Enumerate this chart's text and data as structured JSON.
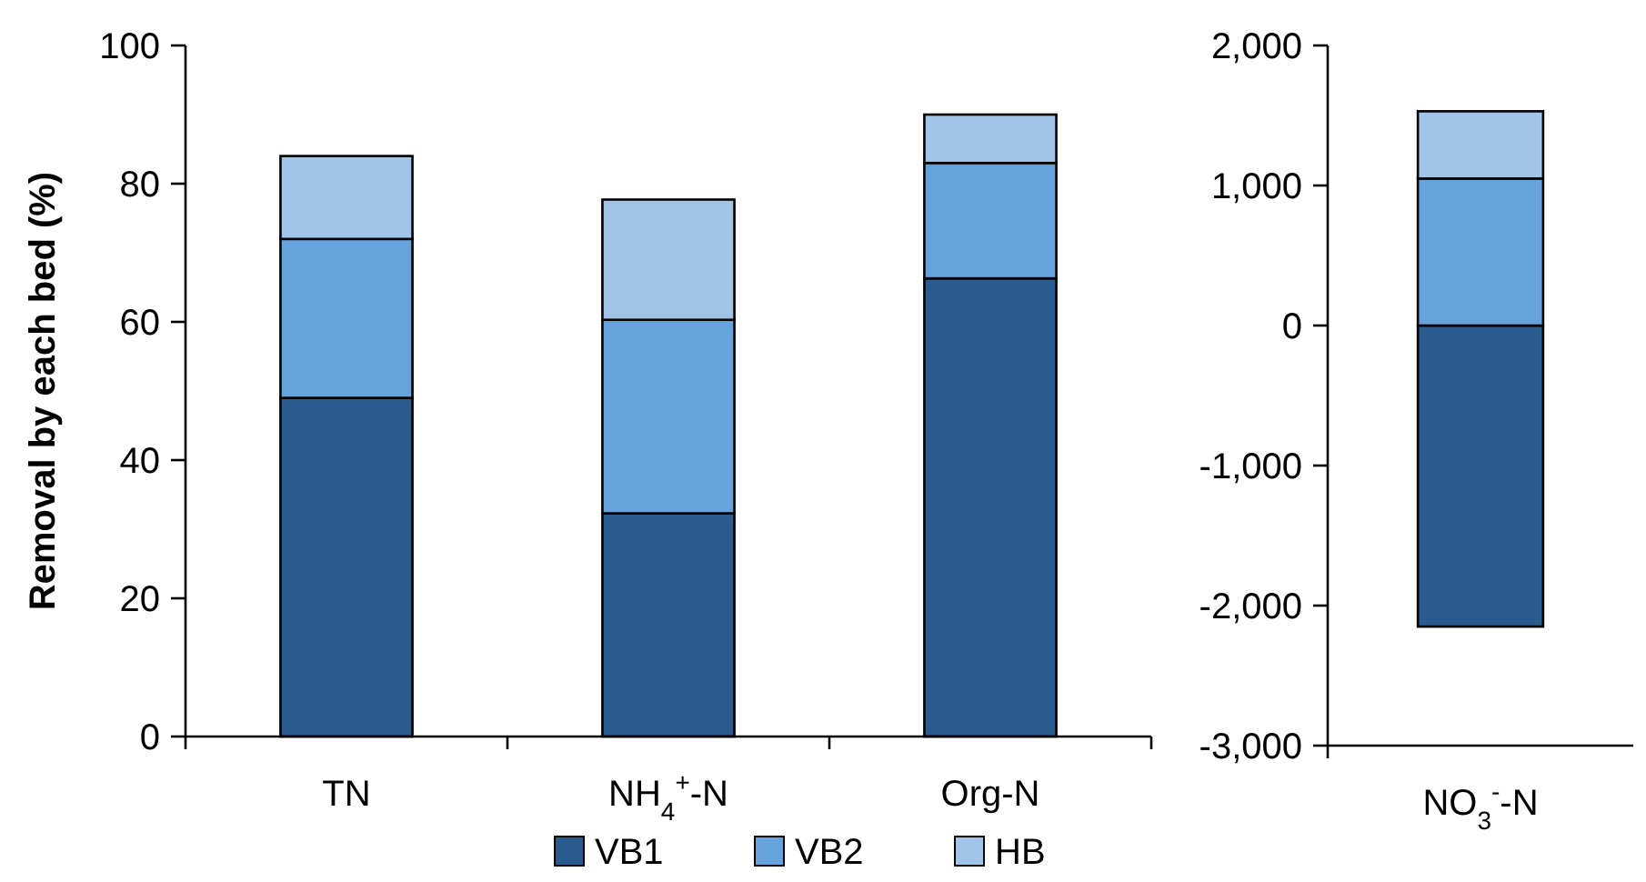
{
  "chart_data": [
    {
      "type": "bar",
      "stacked": true,
      "ylabel": "Removal by each bed (%)",
      "categories": [
        "TN",
        "NH$_{4}$$^{+}$-N",
        "Org-N"
      ],
      "ylim": [
        0,
        100
      ],
      "yticks": [
        0,
        20,
        40,
        60,
        80,
        100
      ],
      "legend": "bottom",
      "grid": false,
      "series": [
        {
          "name": "VB1",
          "color": "#2a5b8f",
          "values": [
            49,
            32.3,
            66.3
          ]
        },
        {
          "name": "VB2",
          "color": "#66a3dd",
          "values": [
            23,
            28,
            16.7
          ]
        },
        {
          "name": "HB",
          "color": "#a3c4e9",
          "values": [
            12,
            17.4,
            7
          ]
        }
      ]
    },
    {
      "type": "bar",
      "stacked": true,
      "categories": [
        "NO$_{3}$$^{-}$-N"
      ],
      "ylim": [
        -3000,
        2000
      ],
      "yticks": [
        {
          "value": -3000,
          "label": "-3,000"
        },
        {
          "value": -2000,
          "label": "-2,000"
        },
        {
          "value": -1000,
          "label": "-1,000"
        },
        0,
        {
          "value": 1000,
          "label": "1,000"
        },
        {
          "value": 2000,
          "label": "2,000"
        }
      ],
      "grid": false,
      "series": [
        {
          "color": "#2a5b8f",
          "values": [
            -2150
          ]
        },
        {
          "color": "#66a3dd",
          "values": [
            1050
          ]
        },
        {
          "color": "#a3c4e9",
          "values": [
            480
          ]
        }
      ]
    }
  ]
}
